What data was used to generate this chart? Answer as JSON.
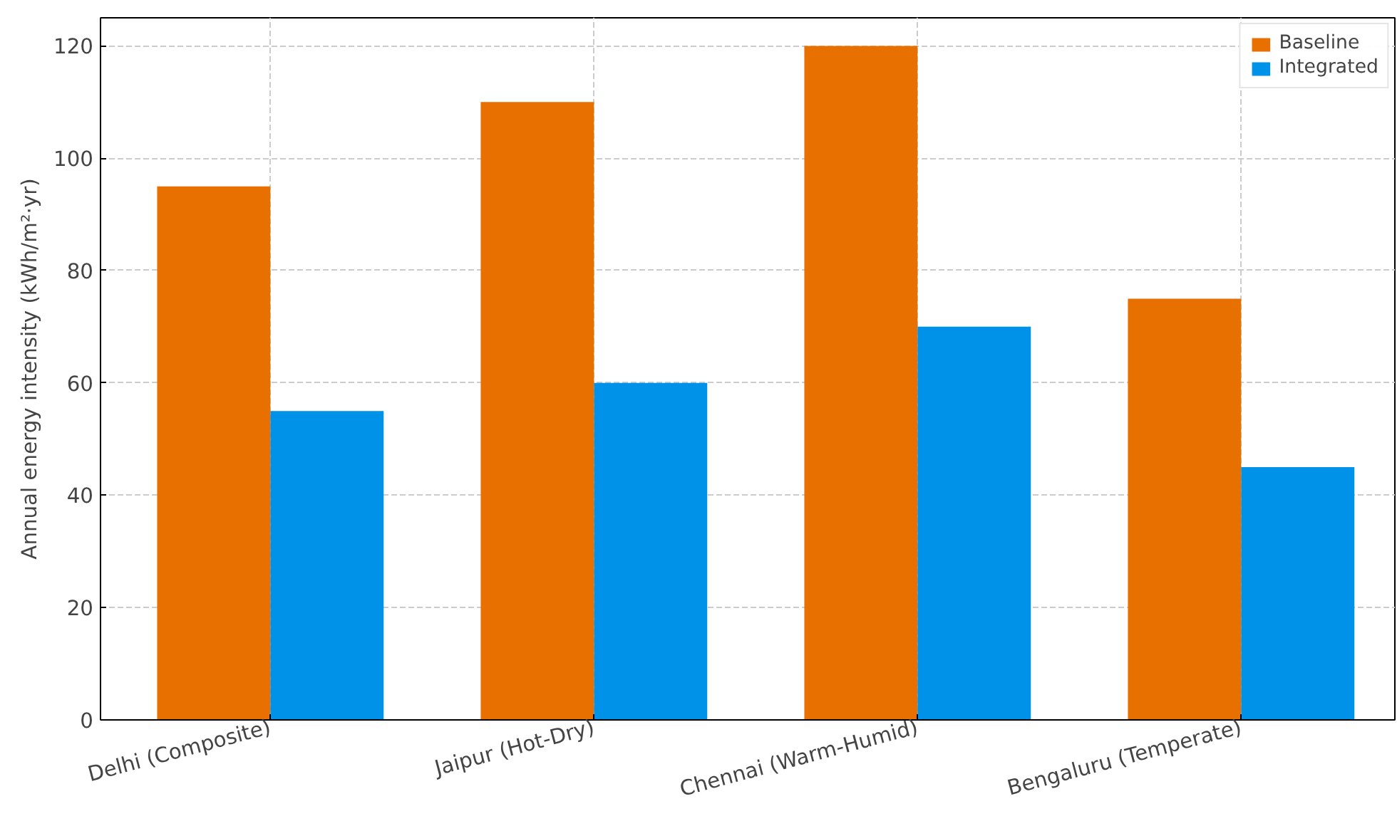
{
  "chart_data": {
    "type": "bar",
    "ylabel": "Annual energy intensity (kWh/m²·yr)",
    "categories": [
      "Delhi (Composite)",
      "Jaipur (Hot-Dry)",
      "Chennai (Warm-Humid)",
      "Bengaluru (Temperate)"
    ],
    "series": [
      {
        "name": "Baseline",
        "color": "#e87000",
        "values": [
          95,
          110,
          120,
          75
        ]
      },
      {
        "name": "Integrated",
        "color": "#0091e8",
        "values": [
          55,
          60,
          70,
          45
        ]
      }
    ],
    "ylim": [
      0,
      125
    ],
    "yticks": [
      0,
      20,
      40,
      60,
      80,
      100,
      120
    ],
    "grid": true,
    "legend": "top right"
  }
}
